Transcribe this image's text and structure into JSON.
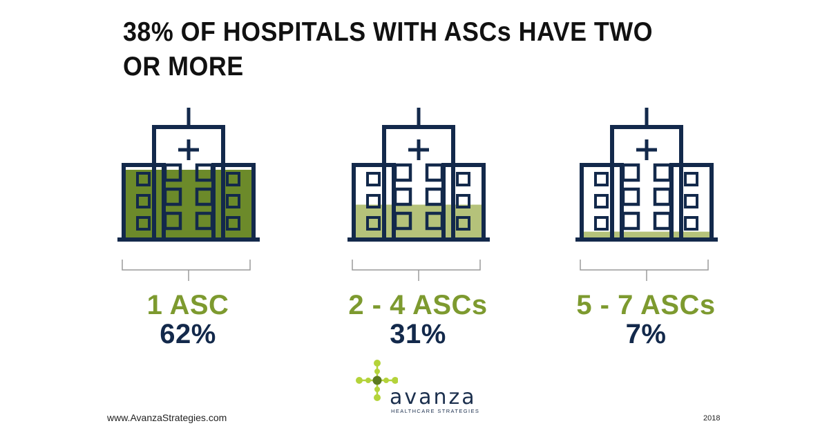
{
  "title": "38% OF HOSPITALS WITH ASCs HAVE TWO OR MORE",
  "colors": {
    "navy": "#13294b",
    "fill_dark": "#6c8a2a",
    "fill_light": "#b5c27a",
    "label_green": "#7d9a2f",
    "logo_light": "#b4d33a",
    "logo_dark": "#5c7a1f"
  },
  "chart_data": {
    "type": "pictograph",
    "title": "38% OF HOSPITALS WITH ASCs HAVE TWO OR MORE",
    "icon": "hospital-building-icon",
    "categories": [
      "1 ASC",
      "2 - 4 ASCs",
      "5 - 7 ASCs"
    ],
    "values": [
      62,
      31,
      7
    ],
    "value_labels": [
      "62%",
      "31%",
      "7%"
    ],
    "unit": "%"
  },
  "footer": {
    "website": "www.AvanzaStrategies.com",
    "year": "2018",
    "logo_name": "avanza",
    "logo_tagline": "HEALTHCARE STRATEGIES"
  }
}
